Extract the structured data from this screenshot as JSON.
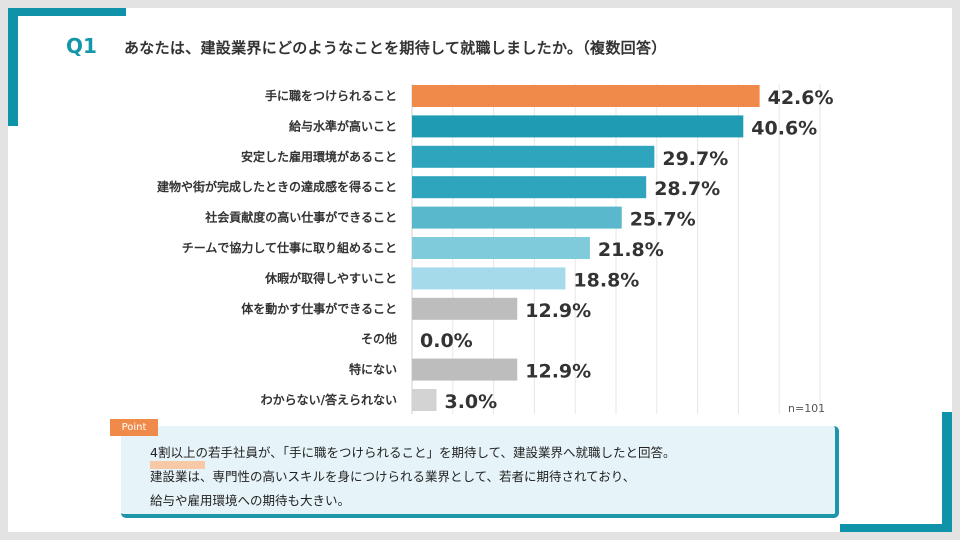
{
  "header": {
    "question_number": "Q1",
    "question_text": "あなたは、建設業界にどのようなことを期待して就職しましたか。（複数回答）"
  },
  "colors": {
    "accent": "#0e93a8",
    "highlight_bar": "#f08a4b"
  },
  "chart_data": {
    "type": "bar",
    "orientation": "horizontal",
    "title": "あなたは、建設業界にどのようなことを期待して就職しましたか。（複数回答）",
    "categories": [
      "手に職をつけられること",
      "給与水準が高いこと",
      "安定した雇用環境があること",
      "建物や街が完成したときの達成感を得ること",
      "社会貢献度の高い仕事ができること",
      "チームで協力して仕事に取り組めること",
      "休暇が取得しやすいこと",
      "体を動かす仕事ができること",
      "その他",
      "特にない",
      "わからない/答えられない"
    ],
    "values": [
      42.6,
      40.6,
      29.7,
      28.7,
      25.7,
      21.8,
      18.8,
      12.9,
      0.0,
      12.9,
      3.0
    ],
    "value_labels": [
      "42.6%",
      "40.6%",
      "29.7%",
      "28.7%",
      "25.7%",
      "21.8%",
      "18.8%",
      "12.9%",
      "0.0%",
      "12.9%",
      "3.0%"
    ],
    "bar_colors": [
      "#f08a4b",
      "#1f9cb3",
      "#2ea5bd",
      "#2ea5bd",
      "#59b8cc",
      "#7fcadb",
      "#a4daea",
      "#bdbdbd",
      "#bdbdbd",
      "#bdbdbd",
      "#d3d3d3"
    ],
    "xlim": [
      0,
      50
    ],
    "xlabel": "",
    "ylabel": "",
    "grid": true,
    "sample_note": "n=101"
  },
  "point": {
    "tag": "Point",
    "lines": [
      "4割以上の若手社員が、「手に職をつけられること」を期待して、建設業界へ就職したと回答。",
      "建設業は、専門性の高いスキルを身につけられる業界として、若者に期待されており、",
      "給与や雇用環境への期待も大きい。"
    ]
  }
}
